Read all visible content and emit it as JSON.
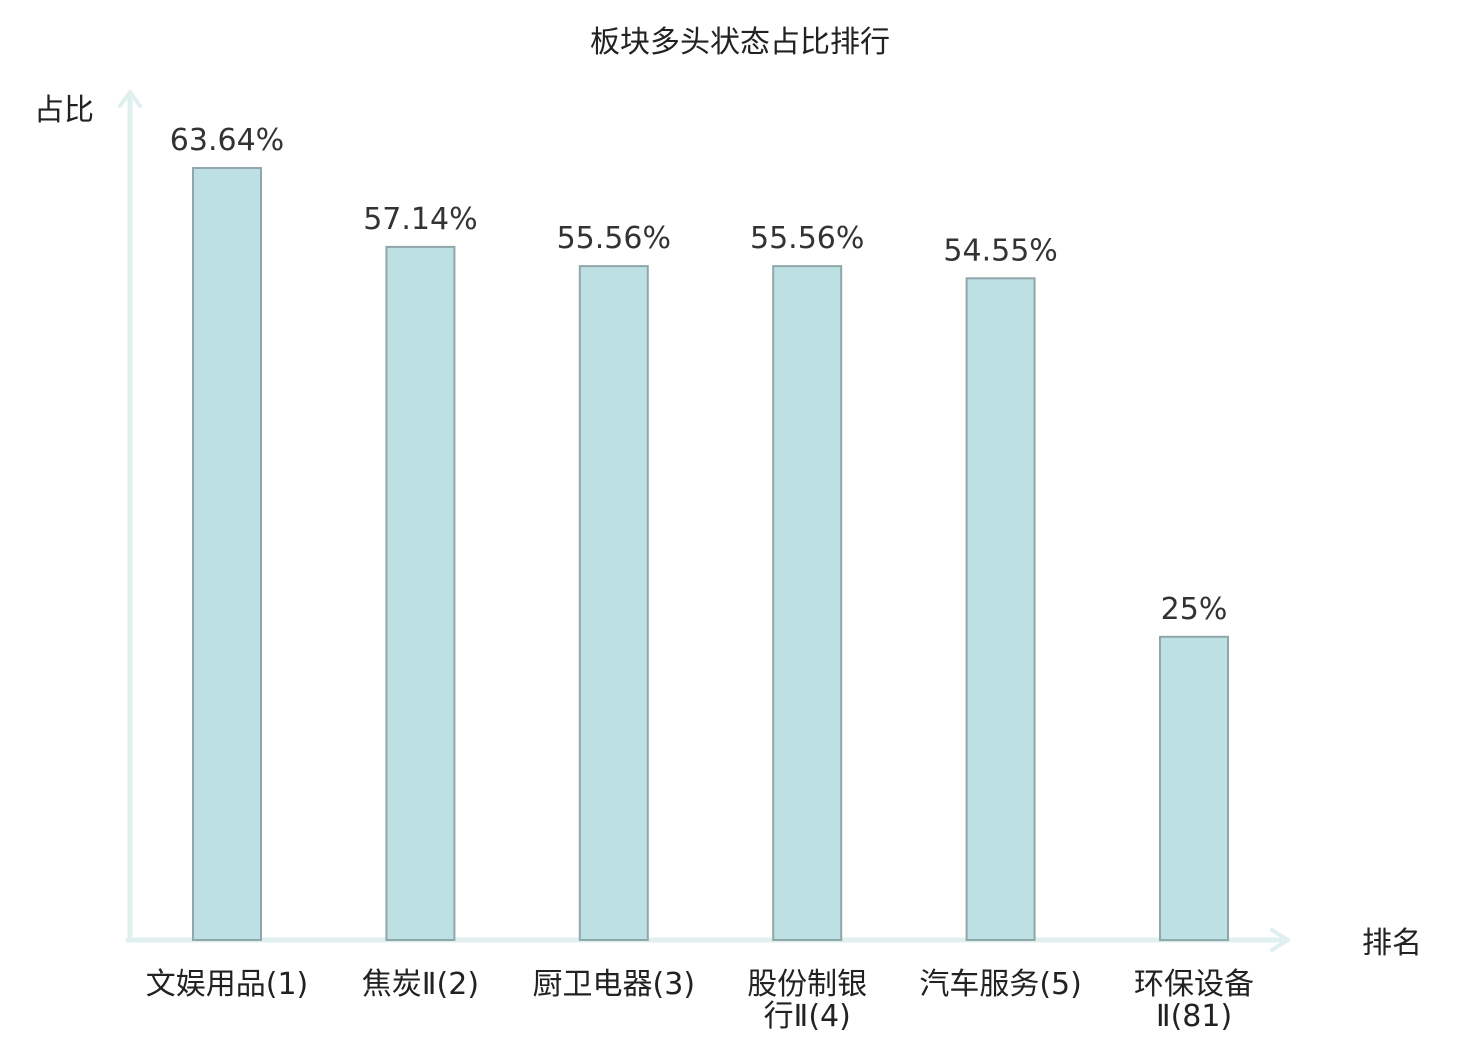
{
  "chart_data": {
    "type": "bar",
    "title": "板块多头状态占比排行",
    "xlabel": "排名",
    "ylabel": "占比",
    "ylim": [
      0,
      70
    ],
    "grid": false,
    "categories": [
      [
        "文娱用品(1)"
      ],
      [
        "焦炭Ⅱ(2)"
      ],
      [
        "厨卫电器(3)"
      ],
      [
        "股份制银",
        "行Ⅱ(4)"
      ],
      [
        "汽车服务(5)"
      ],
      [
        "环保设备",
        "Ⅱ(81)"
      ]
    ],
    "values": [
      63.64,
      57.14,
      55.56,
      55.56,
      54.55,
      25
    ],
    "value_labels": [
      "63.64%",
      "57.14%",
      "55.56%",
      "55.56%",
      "54.55%",
      "25%"
    ],
    "highlight_index": 5
  },
  "colors": {
    "bar_fill": "#bde0e3",
    "bar_stroke": "#8fa7ab",
    "axis": "#dff0ef",
    "highlight_text": "#e8100e",
    "text": "#222222"
  }
}
